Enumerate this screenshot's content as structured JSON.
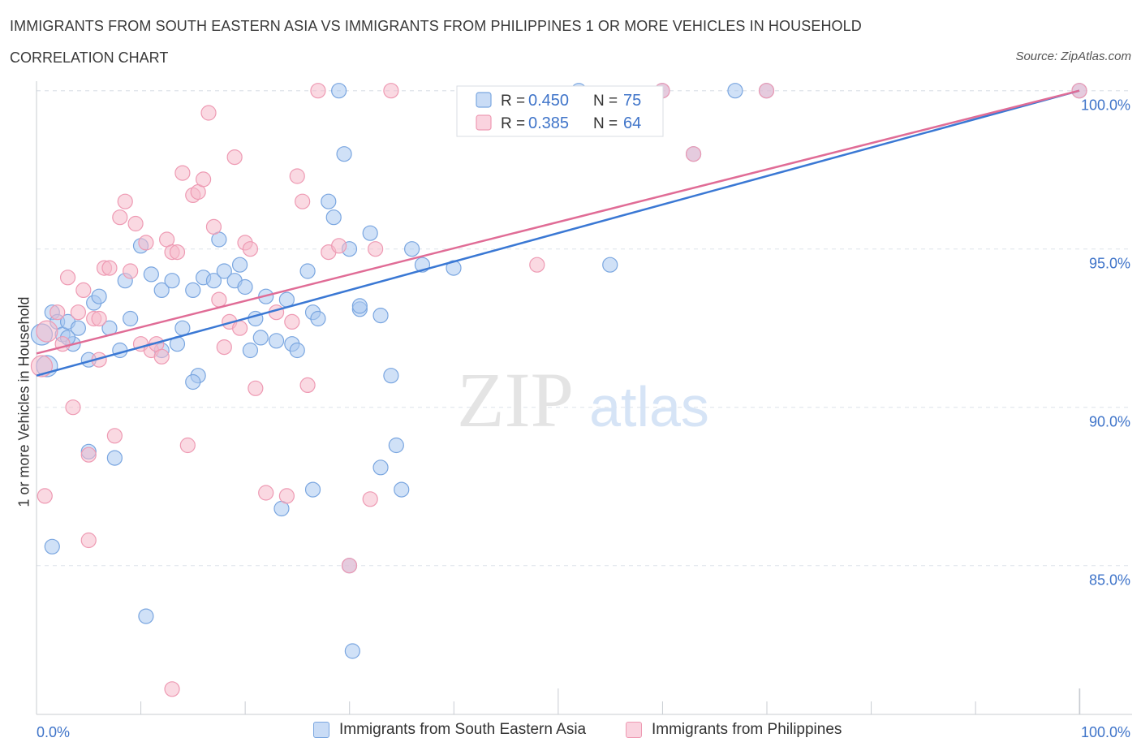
{
  "header": {
    "title": "IMMIGRANTS FROM SOUTH EASTERN ASIA VS IMMIGRANTS FROM PHILIPPINES 1 OR MORE VEHICLES IN HOUSEHOLD",
    "subtitle": "CORRELATION CHART",
    "source": "Source: ZipAtlas.com"
  },
  "watermark": {
    "zip": "ZIP",
    "atlas": "atlas"
  },
  "colors": {
    "blue_fill": "#a9c8f0",
    "blue_stroke": "#7aa6e0",
    "blue_line": "#3a78d4",
    "pink_fill": "#f6b9cb",
    "pink_stroke": "#ee9ab3",
    "pink_line": "#e06c96",
    "tick_text": "#3f74c9",
    "grid": "#dde3ea"
  },
  "legend_top": {
    "rows": [
      {
        "r_label": "R = ",
        "r_value": "0.450",
        "n_label": "N = ",
        "n_value": "75"
      },
      {
        "r_label": "R = ",
        "r_value": "0.385",
        "n_label": "N = ",
        "n_value": "64"
      }
    ]
  },
  "chart_data": {
    "type": "scatter",
    "xlabel": "",
    "ylabel": "1 or more Vehicles in Household",
    "x_ticks": [
      "0.0%",
      "100.0%"
    ],
    "y_ticks": [
      "85.0%",
      "90.0%",
      "95.0%",
      "100.0%"
    ],
    "xlim": [
      0,
      100
    ],
    "ylim": [
      80.3,
      100.3
    ],
    "grid": true,
    "legend": "top-center",
    "series": [
      {
        "name": "Immigrants from South Eastern Asia",
        "color": "blue",
        "trend": {
          "x": [
            0,
            100
          ],
          "y": [
            91.0,
            100.0
          ]
        },
        "points": [
          [
            0.5,
            92.3
          ],
          [
            1.0,
            91.3
          ],
          [
            1.5,
            93.0
          ],
          [
            2.0,
            92.7
          ],
          [
            2.5,
            92.3
          ],
          [
            3.0,
            92.7
          ],
          [
            3.5,
            92.0
          ],
          [
            4.0,
            92.5
          ],
          [
            5.0,
            91.5
          ],
          [
            5.5,
            93.3
          ],
          [
            6.0,
            93.5
          ],
          [
            7.0,
            92.5
          ],
          [
            8.0,
            91.8
          ],
          [
            8.5,
            94.0
          ],
          [
            9.0,
            92.8
          ],
          [
            10.0,
            95.1
          ],
          [
            11.0,
            94.2
          ],
          [
            12.0,
            93.7
          ],
          [
            13.0,
            94.0
          ],
          [
            13.5,
            92.0
          ],
          [
            14.0,
            92.5
          ],
          [
            15.0,
            93.7
          ],
          [
            15.5,
            91.0
          ],
          [
            16.0,
            94.1
          ],
          [
            17.0,
            94.0
          ],
          [
            17.5,
            95.3
          ],
          [
            18.0,
            94.3
          ],
          [
            19.0,
            94.0
          ],
          [
            19.5,
            94.5
          ],
          [
            20.0,
            93.8
          ],
          [
            20.5,
            91.8
          ],
          [
            21.0,
            92.8
          ],
          [
            22.0,
            93.5
          ],
          [
            23.0,
            92.1
          ],
          [
            24.0,
            93.4
          ],
          [
            24.5,
            92.0
          ],
          [
            25.0,
            91.8
          ],
          [
            26.0,
            94.3
          ],
          [
            26.5,
            93.0
          ],
          [
            27.0,
            92.8
          ],
          [
            28.0,
            96.5
          ],
          [
            28.5,
            96.0
          ],
          [
            29.0,
            100.0
          ],
          [
            29.5,
            98.0
          ],
          [
            30.0,
            95.0
          ],
          [
            31.0,
            93.1
          ],
          [
            32.0,
            95.5
          ],
          [
            33.0,
            92.9
          ],
          [
            34.0,
            91.0
          ],
          [
            34.5,
            88.8
          ],
          [
            35.0,
            87.4
          ],
          [
            36.0,
            95.0
          ],
          [
            37.0,
            94.5
          ],
          [
            40.0,
            94.4
          ],
          [
            52.0,
            100.0
          ],
          [
            55.0,
            94.5
          ],
          [
            60.0,
            100.0
          ],
          [
            63.0,
            98.0
          ],
          [
            67.0,
            100.0
          ],
          [
            70.0,
            100.0
          ],
          [
            100.0,
            100.0
          ],
          [
            1.5,
            85.6
          ],
          [
            5.0,
            88.6
          ],
          [
            7.5,
            88.4
          ],
          [
            10.5,
            83.4
          ],
          [
            15.0,
            90.8
          ],
          [
            23.5,
            86.8
          ],
          [
            26.5,
            87.4
          ],
          [
            30.0,
            85.0
          ],
          [
            30.3,
            82.3
          ],
          [
            33.0,
            88.1
          ],
          [
            3.0,
            92.2
          ],
          [
            12.0,
            91.8
          ],
          [
            21.5,
            92.2
          ],
          [
            31.0,
            93.2
          ]
        ]
      },
      {
        "name": "Immigrants from Philippines",
        "color": "pink",
        "trend": {
          "x": [
            0,
            100
          ],
          "y": [
            91.7,
            100.0
          ]
        },
        "points": [
          [
            0.5,
            91.3
          ],
          [
            1.0,
            92.4
          ],
          [
            2.0,
            93.0
          ],
          [
            2.5,
            92.0
          ],
          [
            3.0,
            94.1
          ],
          [
            3.5,
            90.0
          ],
          [
            4.0,
            93.0
          ],
          [
            4.5,
            93.7
          ],
          [
            5.0,
            88.5
          ],
          [
            5.5,
            92.8
          ],
          [
            6.0,
            91.5
          ],
          [
            6.5,
            94.4
          ],
          [
            7.0,
            94.4
          ],
          [
            7.5,
            89.1
          ],
          [
            8.0,
            96.0
          ],
          [
            8.5,
            96.5
          ],
          [
            9.0,
            94.3
          ],
          [
            9.5,
            95.8
          ],
          [
            10.0,
            92.0
          ],
          [
            10.5,
            95.2
          ],
          [
            11.0,
            91.8
          ],
          [
            11.5,
            92.0
          ],
          [
            12.0,
            91.6
          ],
          [
            12.5,
            95.3
          ],
          [
            13.0,
            94.9
          ],
          [
            13.5,
            94.9
          ],
          [
            14.0,
            97.4
          ],
          [
            14.5,
            88.8
          ],
          [
            15.0,
            96.7
          ],
          [
            15.5,
            96.8
          ],
          [
            16.0,
            97.2
          ],
          [
            16.5,
            99.3
          ],
          [
            17.0,
            95.7
          ],
          [
            17.5,
            93.4
          ],
          [
            18.0,
            91.9
          ],
          [
            18.5,
            92.7
          ],
          [
            19.0,
            97.9
          ],
          [
            20.0,
            95.2
          ],
          [
            20.5,
            95.0
          ],
          [
            21.0,
            90.6
          ],
          [
            22.0,
            87.3
          ],
          [
            23.0,
            93.0
          ],
          [
            24.0,
            87.2
          ],
          [
            24.5,
            92.7
          ],
          [
            25.0,
            97.3
          ],
          [
            25.5,
            96.5
          ],
          [
            26.0,
            90.7
          ],
          [
            27.0,
            100.0
          ],
          [
            28.0,
            94.9
          ],
          [
            29.0,
            95.1
          ],
          [
            30.0,
            85.0
          ],
          [
            32.0,
            87.1
          ],
          [
            32.5,
            95.0
          ],
          [
            34.0,
            100.0
          ],
          [
            48.0,
            94.5
          ],
          [
            60.0,
            100.0
          ],
          [
            63.0,
            98.0
          ],
          [
            70.0,
            100.0
          ],
          [
            100.0,
            100.0
          ],
          [
            0.8,
            87.2
          ],
          [
            5.0,
            85.8
          ],
          [
            13.0,
            81.1
          ],
          [
            6.0,
            92.8
          ],
          [
            19.5,
            92.5
          ]
        ]
      }
    ]
  }
}
